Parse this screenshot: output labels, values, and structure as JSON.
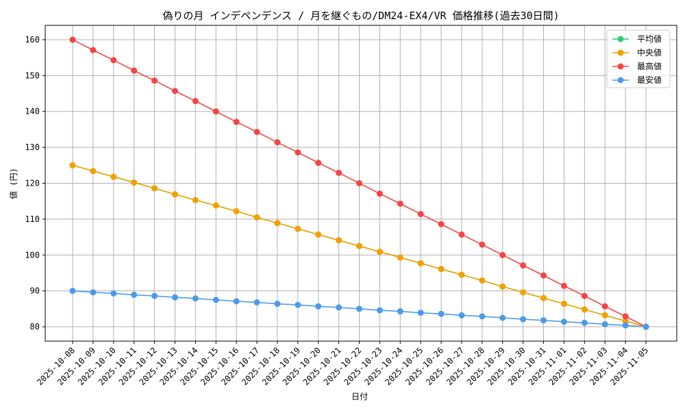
{
  "chart_data": {
    "type": "line",
    "title": "偽りの月 インデペンデンス / 月を継ぐもの/DM24-EX4/VR 価格推移(過去30日間)",
    "xlabel": "日付",
    "ylabel": "値 (円)",
    "ylim": [
      76,
      164
    ],
    "yticks": [
      80,
      90,
      100,
      110,
      120,
      130,
      140,
      150,
      160
    ],
    "grid": true,
    "legend_position": "top-right",
    "categories": [
      "2025-10-08",
      "2025-10-09",
      "2025-10-10",
      "2025-10-11",
      "2025-10-12",
      "2025-10-13",
      "2025-10-14",
      "2025-10-15",
      "2025-10-16",
      "2025-10-17",
      "2025-10-18",
      "2025-10-19",
      "2025-10-20",
      "2025-10-21",
      "2025-10-22",
      "2025-10-23",
      "2025-10-24",
      "2025-10-25",
      "2025-10-26",
      "2025-10-27",
      "2025-10-28",
      "2025-10-29",
      "2025-10-30",
      "2025-10-31",
      "2025-11-01",
      "2025-11-02",
      "2025-11-03",
      "2025-11-04",
      "2025-11-05"
    ],
    "series": [
      {
        "name": "平均値",
        "color": "#2ecc71",
        "values": [
          125,
          123.4,
          121.8,
          120.2,
          118.6,
          116.9,
          115.3,
          113.8,
          112.2,
          110.5,
          108.9,
          107.3,
          105.7,
          104.1,
          102.5,
          100.9,
          99.3,
          97.7,
          96.1,
          94.5,
          92.9,
          91.2,
          89.6,
          88.0,
          86.4,
          84.8,
          83.2,
          81.6,
          80
        ]
      },
      {
        "name": "中央値",
        "color": "#f5a000",
        "values": [
          125,
          123.4,
          121.8,
          120.2,
          118.6,
          116.9,
          115.3,
          113.8,
          112.2,
          110.5,
          108.9,
          107.3,
          105.7,
          104.1,
          102.5,
          100.9,
          99.3,
          97.7,
          96.1,
          94.5,
          92.9,
          91.2,
          89.6,
          88.0,
          86.4,
          84.8,
          83.2,
          81.6,
          80
        ]
      },
      {
        "name": "最高値",
        "color": "#f44444",
        "values": [
          160,
          157.1,
          154.3,
          151.4,
          148.6,
          145.7,
          142.9,
          140.0,
          137.1,
          134.3,
          131.4,
          128.6,
          125.7,
          122.9,
          120.0,
          117.1,
          114.3,
          111.4,
          108.6,
          105.7,
          102.9,
          100.0,
          97.1,
          94.3,
          91.4,
          88.6,
          85.7,
          82.9,
          80
        ]
      },
      {
        "name": "最安値",
        "color": "#4c9be8",
        "values": [
          90,
          89.6,
          89.3,
          88.9,
          88.6,
          88.2,
          87.9,
          87.5,
          87.1,
          86.8,
          86.4,
          86.1,
          85.7,
          85.4,
          85.0,
          84.6,
          84.3,
          83.9,
          83.6,
          83.2,
          82.9,
          82.5,
          82.1,
          81.8,
          81.4,
          81.1,
          80.7,
          80.4,
          80
        ]
      }
    ]
  }
}
